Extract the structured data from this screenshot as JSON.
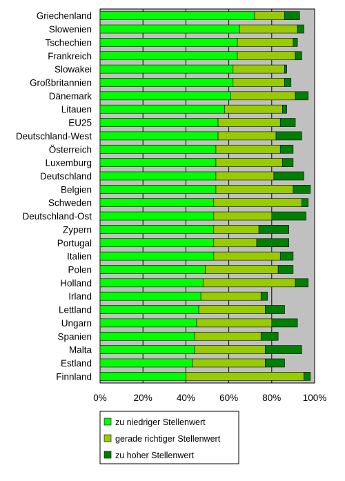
{
  "chart_data": {
    "type": "bar",
    "orientation": "horizontal",
    "stacked": true,
    "categories": [
      "Griechenland",
      "Slowenien",
      "Tschechien",
      "Frankreich",
      "Slowakei",
      "Großbritannien",
      "Dänemark",
      "Litauen",
      "EU25",
      "Deutschland-West",
      "Österreich",
      "Luxemburg",
      "Deutschland",
      "Belgien",
      "Schweden",
      "Deutschland-Ost",
      "Zypern",
      "Portugal",
      "Italien",
      "Polen",
      "Holland",
      "Irland",
      "Lettland",
      "Ungarn",
      "Spanien",
      "Malta",
      "Estland",
      "Finnland"
    ],
    "series": [
      {
        "name": "zu niedriger Stellenwert",
        "color": "#00ff00",
        "values": [
          72,
          65,
          64,
          64,
          62,
          62,
          61,
          58,
          55,
          55,
          54,
          54,
          54,
          54,
          53,
          53,
          53,
          53,
          53,
          49,
          48,
          47,
          46,
          45,
          44,
          44,
          43,
          40
        ]
      },
      {
        "name": "gerade richtiger Stellenwert",
        "color": "#99cc00",
        "values": [
          14,
          27,
          26,
          27,
          24,
          24,
          30,
          27,
          29,
          27,
          30,
          31,
          27,
          36,
          41,
          27,
          21,
          20,
          31,
          34,
          43,
          28,
          31,
          35,
          31,
          33,
          34,
          55
        ]
      },
      {
        "name": "zu hoher Stellenwert",
        "color": "#008000",
        "values": [
          7,
          3,
          2,
          3,
          1,
          3,
          6,
          2,
          7,
          12,
          6,
          5,
          14,
          8,
          3,
          16,
          14,
          15,
          6,
          7,
          6,
          3,
          9,
          12,
          8,
          17,
          9,
          3
        ]
      }
    ],
    "xlim": [
      0,
      100
    ],
    "xticks": [
      "0%",
      "20%",
      "40%",
      "60%",
      "80%",
      "100%"
    ],
    "grid": true,
    "legend": "bottom",
    "colors": {
      "plot_background": "#c0c0c0",
      "gridline": "#000000"
    }
  }
}
